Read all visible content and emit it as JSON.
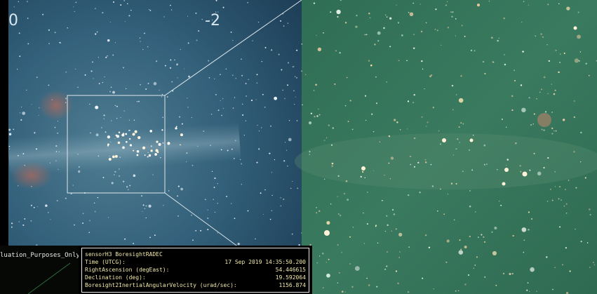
{
  "labels": [
    "0",
    "-2"
  ],
  "watermark": "luation_Purposes_Only",
  "panel": {
    "title": "sensorH3 BoresightRADEC",
    "rows": [
      {
        "label": "Time (UTCG):",
        "value": "17 Sep 2019 14:35:50.200"
      },
      {
        "label": "RightAscension (degEast):",
        "value": "54.446615"
      },
      {
        "label": "Declination (deg):",
        "value": "19.592064"
      },
      {
        "label": "Boresight2InertialAngularVelocity (urad/sec):",
        "value": "1156.874"
      }
    ]
  }
}
